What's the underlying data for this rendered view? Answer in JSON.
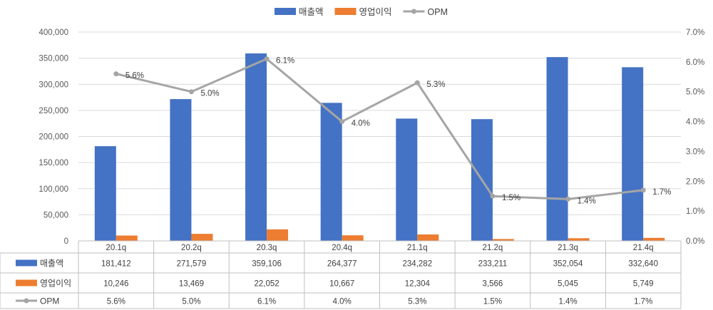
{
  "chart_data": {
    "type": "bar",
    "categories": [
      "20.1q",
      "20.2q",
      "20.3q",
      "20.4q",
      "21.1q",
      "21.2q",
      "21.3q",
      "21.4q"
    ],
    "series": [
      {
        "name": "매출액",
        "type": "bar",
        "axis": "left",
        "color": "#4472C4",
        "values": [
          181412,
          271579,
          359106,
          264377,
          234282,
          233211,
          352054,
          332640
        ],
        "table_values": [
          "181,412",
          "271,579",
          "359,106",
          "264,377",
          "234,282",
          "233,211",
          "352,054",
          "332,640"
        ]
      },
      {
        "name": "영업이익",
        "type": "bar",
        "axis": "left",
        "color": "#ED7D31",
        "values": [
          10246,
          13469,
          22052,
          10667,
          12304,
          3566,
          5045,
          5749
        ],
        "table_values": [
          "10,246",
          "13,469",
          "22,052",
          "10,667",
          "12,304",
          "3,566",
          "5,045",
          "5,749"
        ]
      },
      {
        "name": "OPM",
        "type": "line",
        "axis": "right",
        "color": "#A5A5A5",
        "values": [
          5.6,
          5.0,
          6.1,
          4.0,
          5.3,
          1.5,
          1.4,
          1.7
        ],
        "table_values": [
          "5.6%",
          "5.0%",
          "6.1%",
          "4.0%",
          "5.3%",
          "1.5%",
          "1.4%",
          "1.7%"
        ]
      }
    ],
    "y_left": {
      "min": 0,
      "max": 400000,
      "step": 50000,
      "ticks": [
        "0",
        "50,000",
        "100,000",
        "150,000",
        "200,000",
        "250,000",
        "300,000",
        "350,000",
        "400,000"
      ]
    },
    "y_right": {
      "min": 0,
      "max": 7,
      "step": 1,
      "ticks": [
        "0.0%",
        "1.0%",
        "2.0%",
        "3.0%",
        "4.0%",
        "5.0%",
        "6.0%",
        "7.0%"
      ]
    },
    "line_labels": [
      "5.6%",
      "5.0%",
      "6.1%",
      "4.0%",
      "5.3%",
      "1.5%",
      "1.4%",
      "1.7%"
    ],
    "legend_position": "top-center",
    "grid": true,
    "data_table": true
  }
}
